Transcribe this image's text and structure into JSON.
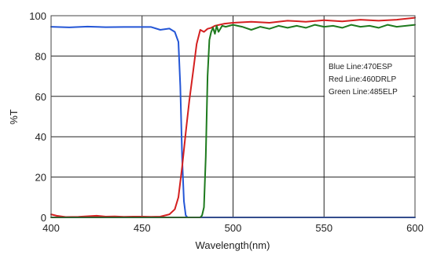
{
  "chart_data": {
    "type": "line",
    "xlabel": "Wavelength(nm)",
    "ylabel": "%T",
    "xlim": [
      400,
      600
    ],
    "ylim": [
      0,
      100
    ],
    "x_ticks": [
      400,
      450,
      500,
      550,
      600
    ],
    "y_ticks": [
      0,
      20,
      40,
      60,
      80,
      100
    ],
    "grid": "on",
    "legend_position": "top-right",
    "legend": [
      "Blue Line:470ESP",
      "Red Line:460DRLP",
      "Green Line:485ELP"
    ],
    "series": [
      {
        "color": "#2456d6",
        "x": [
          400,
          410,
          420,
          430,
          440,
          450,
          455,
          460,
          465,
          468,
          470,
          471,
          472,
          473,
          474,
          475,
          600
        ],
        "y": [
          94.5,
          94.2,
          94.6,
          94.3,
          94.4,
          94.4,
          94.4,
          93.0,
          93.6,
          92.0,
          87.0,
          65.0,
          30.0,
          8.0,
          1.0,
          0.0,
          0.0
        ]
      },
      {
        "color": "#d42020",
        "x": [
          400,
          403,
          408,
          415,
          425,
          430,
          435,
          440,
          445,
          450,
          455,
          460,
          465,
          468,
          470,
          472,
          474,
          476,
          478,
          480,
          482,
          484,
          486,
          488,
          490,
          495,
          500,
          510,
          520,
          530,
          540,
          550,
          560,
          570,
          580,
          590,
          600
        ],
        "y": [
          1.5,
          0.8,
          0.2,
          0.3,
          0.8,
          0.4,
          0.5,
          0.3,
          0.4,
          0.4,
          0.3,
          0.4,
          1.5,
          4.0,
          10.0,
          25.0,
          42.0,
          58.0,
          72.0,
          86.0,
          93.0,
          92.0,
          93.5,
          94.0,
          95.0,
          96.0,
          96.5,
          97.0,
          96.5,
          97.5,
          97.0,
          97.8,
          97.2,
          98.0,
          97.5,
          98.0,
          99.0
        ]
      },
      {
        "color": "#1e7a1e",
        "x": [
          400,
          482,
          483,
          484,
          485,
          486,
          487,
          488,
          489,
          490,
          491,
          492,
          494,
          496,
          500,
          505,
          510,
          515,
          520,
          525,
          530,
          535,
          540,
          545,
          550,
          555,
          560,
          565,
          570,
          575,
          580,
          585,
          590,
          595,
          600
        ],
        "y": [
          0,
          0,
          1.0,
          5.0,
          30.0,
          70.0,
          88.0,
          92.0,
          94.0,
          91.0,
          95.0,
          92.0,
          95.0,
          94.5,
          95.5,
          94.5,
          93.0,
          94.5,
          93.5,
          95.0,
          94.0,
          95.0,
          94.0,
          95.5,
          94.5,
          95.0,
          94.0,
          95.5,
          94.5,
          95.0,
          94.0,
          95.5,
          94.5,
          95.0,
          95.5
        ]
      }
    ]
  }
}
